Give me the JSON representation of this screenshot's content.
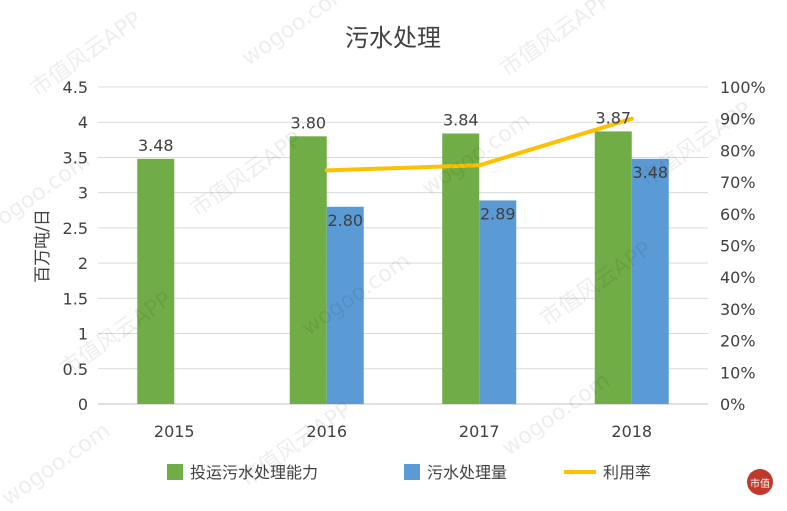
{
  "chart_data": {
    "type": "bar",
    "title": "污水处理",
    "ylabel": "百万吨/日",
    "categories": [
      "2015",
      "2016",
      "2017",
      "2018"
    ],
    "y_ticks": [
      "0",
      "0.5",
      "1",
      "1.5",
      "2",
      "2.5",
      "3",
      "3.5",
      "4",
      "4.5"
    ],
    "y2_ticks": [
      "0%",
      "10%",
      "20%",
      "30%",
      "40%",
      "50%",
      "60%",
      "70%",
      "80%",
      "90%",
      "100%"
    ],
    "ylim": [
      0,
      4.5
    ],
    "y2lim": [
      0,
      1.0
    ],
    "grid": true,
    "legend_position": "bottom",
    "series": [
      {
        "name": "投运污水处理能力",
        "kind": "bar",
        "axis": "left",
        "color": "#70ad47",
        "values": [
          3.48,
          3.8,
          3.84,
          3.87
        ],
        "labels": [
          "3.48",
          "3.80",
          "3.84",
          "3.87"
        ]
      },
      {
        "name": "污水处理量",
        "kind": "bar",
        "axis": "left",
        "color": "#5b9bd5",
        "values": [
          null,
          2.8,
          2.89,
          3.48
        ],
        "labels": [
          "",
          "2.80",
          "2.89",
          "3.48"
        ]
      },
      {
        "name": "利用率",
        "kind": "line",
        "axis": "right",
        "color": "#ffc000",
        "values": [
          null,
          0.737,
          0.753,
          0.9
        ]
      }
    ]
  },
  "watermark": {
    "text_a": "市值风云APP",
    "text_b": "wogoo.com",
    "logo_text": "市值",
    "logo_color": "#c0392b"
  }
}
